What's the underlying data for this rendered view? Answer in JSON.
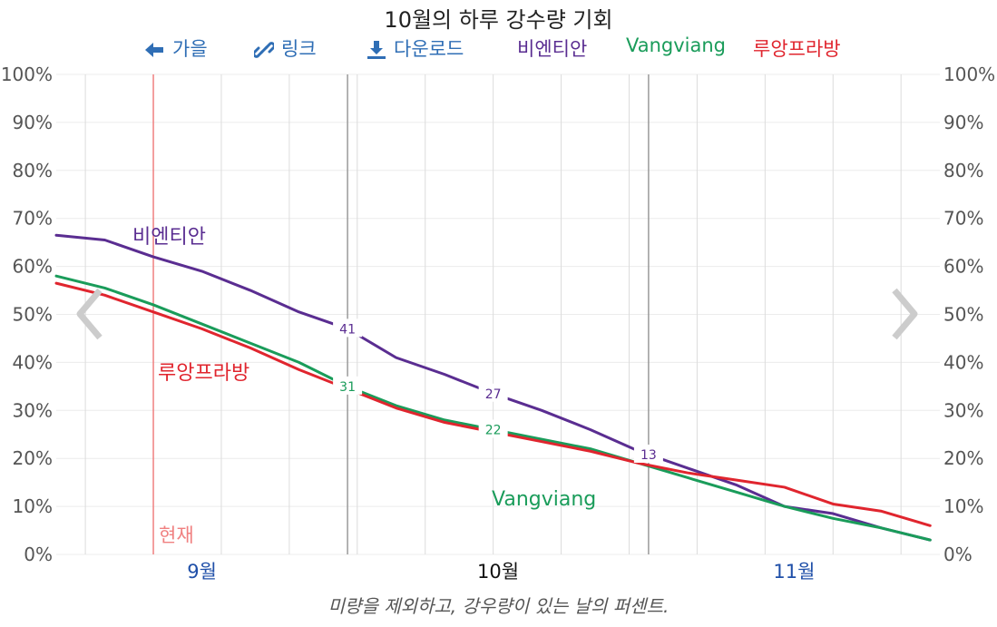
{
  "title": "10월의 하루 강수량 기회",
  "toolbar": {
    "back_label": "가을",
    "link_label": "링크",
    "download_label": "다운로드",
    "legend": [
      {
        "name": "비엔티안",
        "color": "#5a2d91"
      },
      {
        "name": "Vangviang",
        "color": "#1a9c5a"
      },
      {
        "name": "루앙프라방",
        "color": "#e0252e"
      }
    ]
  },
  "now_label": "현재",
  "footer": "미량을 제외하고, 강우량이 있는 날의 퍼센트.",
  "chart_data": {
    "type": "line",
    "ylim": [
      0,
      100
    ],
    "y_ticks": [
      "0%",
      "10%",
      "20%",
      "30%",
      "40%",
      "50%",
      "60%",
      "70%",
      "80%",
      "90%",
      "100%"
    ],
    "months": [
      {
        "label": "9월",
        "current": false,
        "color": "#1f4fa8"
      },
      {
        "label": "10월",
        "current": true,
        "color": "#111111"
      },
      {
        "label": "11월",
        "current": false,
        "color": "#1f4fa8"
      }
    ],
    "x_day_range": [
      0,
      91
    ],
    "now_day": 10,
    "month_boundaries": [
      30,
      61
    ],
    "x": [
      0,
      5,
      10,
      15,
      20,
      25,
      30,
      35,
      40,
      45,
      50,
      55,
      60,
      65,
      70,
      75,
      80,
      85,
      90
    ],
    "series": [
      {
        "name": "비엔티안",
        "color": "#5a2d91",
        "values": [
          66.5,
          65.5,
          62,
          59,
          55,
          50.5,
          47,
          41,
          37.5,
          33.5,
          30,
          26,
          21.5,
          18,
          14.5,
          10,
          8.5,
          5.5,
          3
        ]
      },
      {
        "name": "Vangviang",
        "color": "#1a9c5a",
        "values": [
          58,
          55.5,
          52,
          48,
          44,
          40,
          35,
          31,
          28,
          26,
          24,
          22,
          19,
          16,
          13,
          10,
          7.5,
          5.5,
          3
        ]
      },
      {
        "name": "루앙프라방",
        "color": "#e0252e",
        "values": [
          56.5,
          54,
          50.5,
          47,
          43,
          38.5,
          34.5,
          30.5,
          27.5,
          25.5,
          23.5,
          21.5,
          19,
          17,
          15.5,
          14,
          10.5,
          9,
          6
        ]
      }
    ],
    "annotations": [
      {
        "series": "비엔티안",
        "label": "41",
        "x": 30
      },
      {
        "series": "Vangviang",
        "label": "31",
        "x": 30
      },
      {
        "series": "비엔티안",
        "label": "27",
        "x": 45
      },
      {
        "series": "Vangviang",
        "label": "22",
        "x": 45
      },
      {
        "series": "비엔티안",
        "label": "13",
        "x": 61
      }
    ],
    "inline_series_labels": [
      {
        "label": "비엔티안",
        "color": "#5a2d91"
      },
      {
        "label": "루앙프라방",
        "color": "#e0252e"
      },
      {
        "label": "Vangviang",
        "color": "#1a9c5a"
      }
    ]
  }
}
